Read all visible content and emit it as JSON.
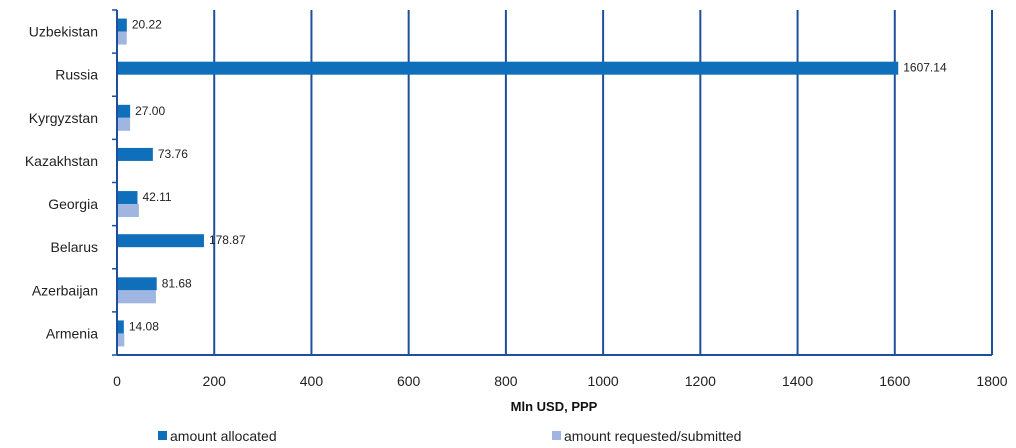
{
  "chart_data": {
    "type": "bar",
    "orientation": "horizontal",
    "categories": [
      "Uzbekistan",
      "Russia",
      "Kyrgyzstan",
      "Kazakhstan",
      "Georgia",
      "Belarus",
      "Azerbaijan",
      "Armenia"
    ],
    "series": [
      {
        "name": "amount allocated",
        "color": "#0f6fba",
        "values": [
          20.22,
          1607.14,
          27.0,
          73.76,
          42.11,
          178.87,
          81.68,
          14.08
        ],
        "labels": [
          "20.22",
          "1607.14",
          "27.00",
          "73.76",
          "42.11",
          "178.87",
          "81.68",
          "14.08"
        ]
      },
      {
        "name": "amount requested/submitted",
        "color": "#9fb6e0",
        "values": [
          20,
          null,
          27,
          null,
          45,
          null,
          80,
          15
        ]
      }
    ],
    "xlabel": "Mln USD, PPP",
    "xlim": [
      0,
      1800
    ],
    "xticks": [
      "0",
      "200",
      "400",
      "600",
      "800",
      "1000",
      "1200",
      "1400",
      "1600",
      "1800"
    ],
    "grid": "vertical",
    "legend_position": "bottom"
  }
}
